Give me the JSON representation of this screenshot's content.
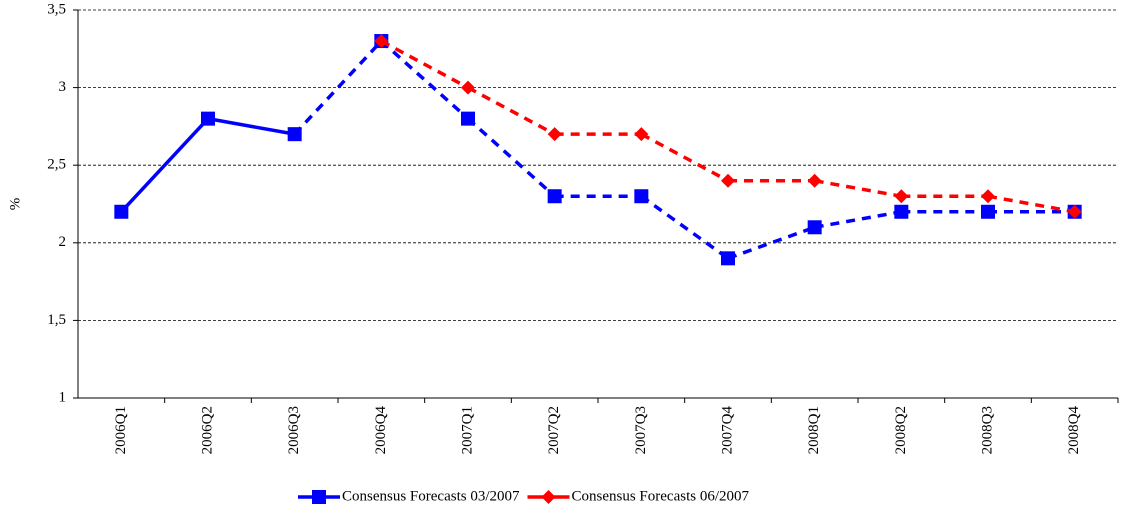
{
  "chart_data": {
    "type": "line",
    "y_label": "%",
    "categories": [
      "2006Q1",
      "2006Q2",
      "2006Q3",
      "2006Q4",
      "2007Q1",
      "2007Q2",
      "2007Q3",
      "2007Q4",
      "2008Q1",
      "2008Q2",
      "2008Q3",
      "2008Q4"
    ],
    "series": [
      {
        "name": "Consensus Forecasts 03/2007",
        "color": "#0000ff",
        "marker": "square",
        "values": [
          2.2,
          2.8,
          2.7,
          3.3,
          2.8,
          2.3,
          2.3,
          1.9,
          2.1,
          2.2,
          2.2,
          2.2
        ],
        "line_style": [
          "solid",
          "solid",
          "solid",
          "dashed",
          "dashed",
          "dashed",
          "dashed",
          "dashed",
          "dashed",
          "dashed",
          "dashed",
          "dashed"
        ]
      },
      {
        "name": "Consensus Forecasts 06/2007",
        "color": "#ff0000",
        "marker": "diamond",
        "values": [
          null,
          null,
          null,
          3.3,
          3.0,
          2.7,
          2.7,
          2.4,
          2.4,
          2.3,
          2.3,
          2.2
        ],
        "line_style": [
          "dashed",
          "dashed",
          "dashed",
          "dashed",
          "dashed",
          "dashed",
          "dashed",
          "dashed",
          "dashed",
          "dashed",
          "dashed",
          "dashed"
        ]
      }
    ],
    "ylim": [
      1,
      3.5
    ],
    "yticks": [
      1,
      {
        "value": 1.5,
        "label": "1,5"
      },
      2,
      {
        "value": 2.5,
        "label": "2,5"
      },
      3,
      {
        "value": 3.5,
        "label": "3,5"
      }
    ],
    "grid": true,
    "legend": "bottom"
  }
}
